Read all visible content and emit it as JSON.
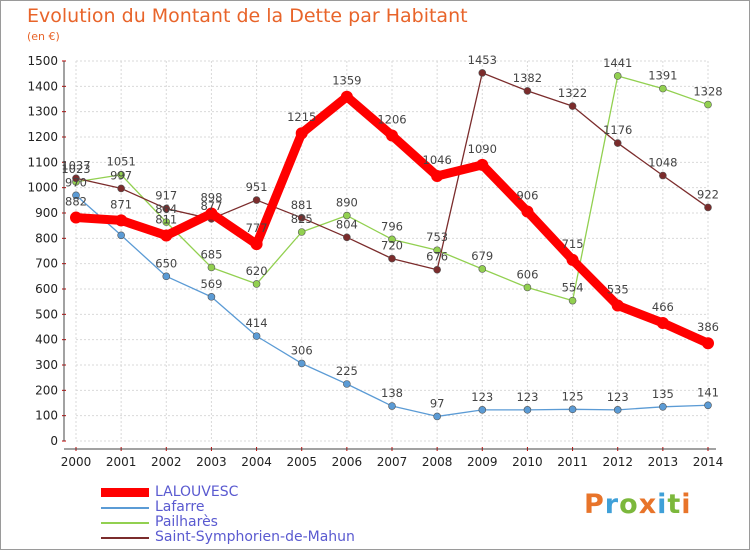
{
  "chart_data": {
    "type": "line",
    "title": "Evolution du Montant de la Dette par Habitant",
    "unit": "(en €)",
    "x": [
      "2000",
      "2001",
      "2002",
      "2003",
      "2004",
      "2005",
      "2006",
      "2007",
      "2008",
      "2009",
      "2010",
      "2011",
      "2012",
      "2013",
      "2014"
    ],
    "ylim": [
      0,
      1500
    ],
    "yticks": [
      0,
      100,
      200,
      300,
      400,
      500,
      600,
      700,
      800,
      900,
      1000,
      1100,
      1200,
      1300,
      1400,
      1500
    ],
    "grid": true,
    "legend_position": "bottom-left",
    "series": [
      {
        "name": "LALOUVESC",
        "color": "#ff0000",
        "values": [
          882,
          871,
          811,
          898,
          777,
          1215,
          1359,
          1206,
          1046,
          1090,
          906,
          715,
          535,
          466,
          386
        ],
        "labels": [
          "882",
          "871",
          "811",
          "898",
          "777",
          "1215",
          "1359",
          "1206",
          "1046",
          "1090",
          "906",
          "715",
          "535",
          "466",
          "386"
        ]
      },
      {
        "name": "Lafarre",
        "color": "#5b9bd5",
        "values": [
          970,
          812,
          650,
          569,
          414,
          306,
          225,
          138,
          97,
          123,
          123,
          125,
          123,
          135,
          141
        ],
        "labels": [
          "970",
          "",
          "650",
          "569",
          "414",
          "306",
          "225",
          "138",
          "97",
          "123",
          "123",
          "125",
          "123",
          "135",
          "141"
        ]
      },
      {
        "name": "Pailharès",
        "color": "#92d050",
        "values": [
          1023,
          1051,
          864,
          685,
          620,
          825,
          890,
          796,
          753,
          679,
          606,
          554,
          1441,
          1391,
          1328
        ],
        "labels": [
          "1023",
          "1051",
          "864",
          "685",
          "620",
          "825",
          "890",
          "796",
          "753",
          "679",
          "606",
          "554",
          "1441",
          "1391",
          "1328"
        ]
      },
      {
        "name": "Saint-Symphorien-de-Mahun",
        "color": "#7b2c2c",
        "values": [
          1037,
          997,
          917,
          877,
          951,
          881,
          804,
          720,
          676,
          1453,
          1382,
          1322,
          1176,
          1048,
          922
        ],
        "labels": [
          "1037",
          "997",
          "917",
          "877",
          "951",
          "881",
          "804",
          "720",
          "676",
          "1453",
          "1382",
          "1322",
          "1176",
          "1048",
          "922"
        ]
      }
    ]
  },
  "brand": {
    "text": "Proxiti",
    "letter_colors": [
      "#e8742a",
      "#3fa0d8",
      "#7cb83c",
      "#e8742a",
      "#3fa0d8",
      "#7cb83c",
      "#e8742a"
    ]
  }
}
